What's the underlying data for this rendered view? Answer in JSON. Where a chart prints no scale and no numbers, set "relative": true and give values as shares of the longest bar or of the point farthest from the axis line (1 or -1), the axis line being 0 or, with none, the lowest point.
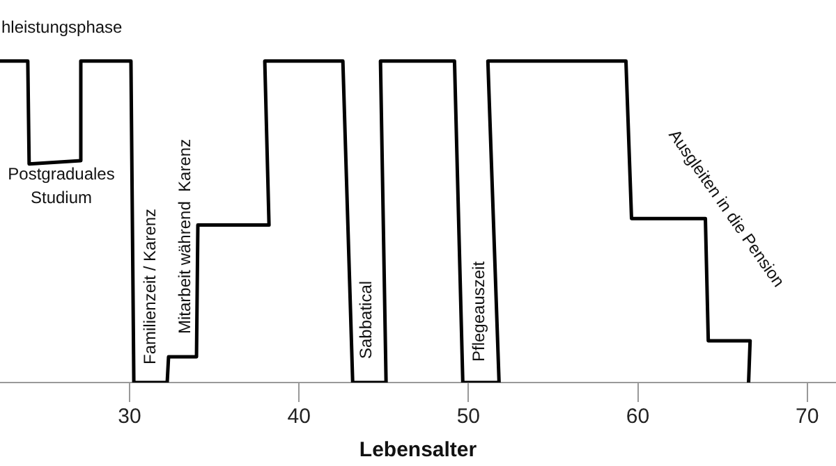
{
  "chart_data": {
    "type": "line",
    "relative": true,
    "xlabel": "Lebensalter",
    "xlim": [
      22.35,
      71.7
    ],
    "xticks": [
      30,
      40,
      50,
      60,
      70
    ],
    "grid": false,
    "legend": false,
    "marker": "none",
    "line_style": "solid",
    "series": [
      {
        "color": "#000000",
        "x": [
          22.35,
          23.99,
          24.07,
          27.12,
          27.12,
          30.08,
          30.25,
          32.22,
          32.3,
          33.95,
          34.03,
          38.23,
          37.98,
          42.59,
          43.17,
          45.14,
          44.81,
          49.18,
          49.67,
          51.81,
          51.15,
          59.3,
          59.63,
          63.99,
          64.16,
          66.63,
          66.54
        ],
        "values": [
          1,
          1,
          0.68,
          0.69,
          1,
          1,
          0,
          0,
          0.08,
          0.08,
          0.49,
          0.49,
          1,
          1,
          0,
          0,
          1,
          1,
          0,
          0,
          1,
          1,
          0.51,
          0.51,
          0.13,
          0.13,
          0
        ]
      }
    ],
    "annotations": [
      "hleistungsphase",
      "Postgraduales\nStudium",
      "Familienzeit / Karenz",
      "Mitarbeit während  Karenz",
      "Sabbatical",
      "Pflegeauszeit",
      "Ausgleiten in die Pension"
    ]
  }
}
